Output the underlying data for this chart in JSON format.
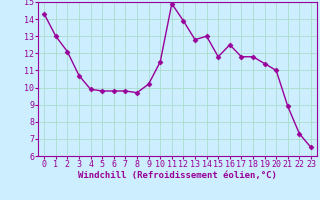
{
  "x": [
    0,
    1,
    2,
    3,
    4,
    5,
    6,
    7,
    8,
    9,
    10,
    11,
    12,
    13,
    14,
    15,
    16,
    17,
    18,
    19,
    20,
    21,
    22,
    23
  ],
  "y": [
    14.3,
    13.0,
    12.1,
    10.7,
    9.9,
    9.8,
    9.8,
    9.8,
    9.7,
    10.2,
    11.5,
    14.9,
    13.9,
    12.8,
    13.0,
    11.8,
    12.5,
    11.8,
    11.8,
    11.4,
    11.0,
    8.9,
    7.3,
    6.5
  ],
  "line_color": "#990099",
  "marker": "D",
  "marker_size": 2.5,
  "bg_color": "#cceeff",
  "grid_color": "#aaddcc",
  "xlabel": "Windchill (Refroidissement éolien,°C)",
  "xlabel_color": "#990099",
  "tick_color": "#990099",
  "spine_color": "#990099",
  "ylim": [
    6,
    15
  ],
  "xlim": [
    -0.5,
    23.5
  ],
  "yticks": [
    6,
    7,
    8,
    9,
    10,
    11,
    12,
    13,
    14,
    15
  ],
  "xticks": [
    0,
    1,
    2,
    3,
    4,
    5,
    6,
    7,
    8,
    9,
    10,
    11,
    12,
    13,
    14,
    15,
    16,
    17,
    18,
    19,
    20,
    21,
    22,
    23
  ],
  "tick_fontsize": 6,
  "xlabel_fontsize": 6.5,
  "line_width": 1.0
}
